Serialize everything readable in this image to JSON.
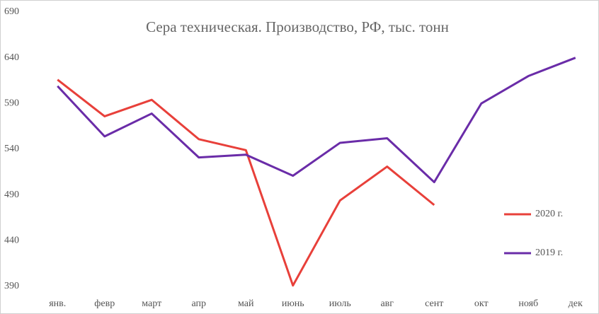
{
  "chart_data": {
    "type": "line",
    "title": "Сера техническая. Производство, РФ, тыс. тонн",
    "categories": [
      "янв.",
      "февр",
      "март",
      "апр",
      "май",
      "июнь",
      "июль",
      "авг",
      "сент",
      "окт",
      "нояб",
      "дек"
    ],
    "series": [
      {
        "name": "2020 г.",
        "color": "#e8403a",
        "values": [
          616,
          576,
          594,
          551,
          539,
          391,
          484,
          521,
          479,
          null,
          null,
          null
        ]
      },
      {
        "name": "2019 г.",
        "color": "#6a2ca8",
        "values": [
          609,
          554,
          579,
          531,
          534,
          511,
          547,
          552,
          504,
          590,
          620,
          640
        ]
      }
    ],
    "ylim": [
      390,
      690
    ],
    "yticks": [
      390,
      440,
      490,
      540,
      590,
      640,
      690
    ],
    "grid": false,
    "legend": "right"
  }
}
